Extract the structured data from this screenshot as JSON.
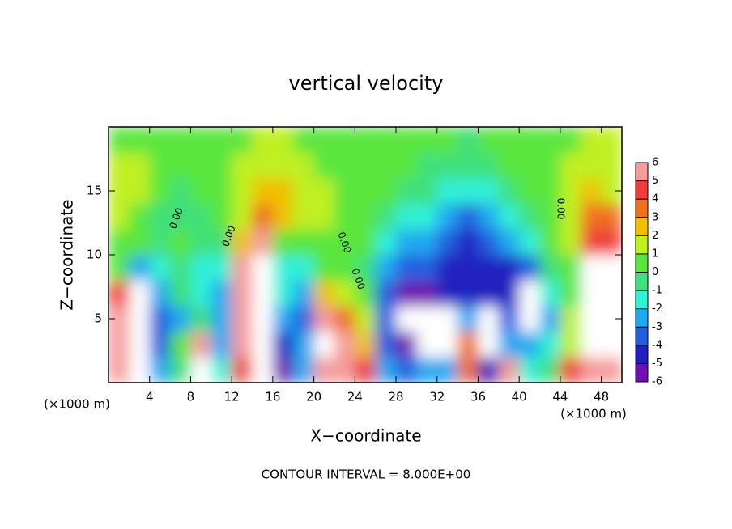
{
  "chart_data": {
    "type": "heatmap",
    "title": "vertical velocity",
    "x_label": "X−coordinate",
    "y_label": "Z−coordinate",
    "x_unit": "(×1000 m)",
    "footer": "CONTOUR INTERVAL = 8.000E+00",
    "contour_label": "0.00",
    "x": [
      1,
      3,
      5,
      7,
      9,
      11,
      13,
      15,
      17,
      19,
      21,
      23,
      25,
      27,
      29,
      31,
      33,
      35,
      37,
      39,
      41,
      43,
      45,
      47,
      49
    ],
    "y": [
      1,
      3,
      5,
      7,
      9,
      11,
      13,
      15,
      17,
      19
    ],
    "z": [
      [
        5,
        -8,
        -3,
        -1,
        8,
        -2,
        4,
        8,
        -6,
        -3,
        6,
        5,
        4,
        -3,
        -4,
        -3,
        -3,
        3,
        -5,
        5,
        -2,
        -1,
        4,
        6,
        5
      ],
      [
        5,
        -8,
        -4,
        0,
        5,
        -3,
        5,
        8,
        -5,
        -3,
        8,
        5,
        2,
        -4,
        -6,
        -8,
        -8,
        3,
        -8,
        -3,
        -3,
        -2,
        1,
        8,
        8
      ],
      [
        5,
        -8,
        -4,
        -3,
        -1,
        -3,
        5,
        8,
        -3,
        -4,
        5,
        3,
        1,
        -4,
        -8,
        -8,
        -8,
        -3,
        -8,
        -4,
        -8,
        -3,
        1,
        8,
        8
      ],
      [
        4,
        -8,
        -3,
        -1,
        -2,
        -3,
        5,
        8,
        -2,
        -3,
        2,
        1,
        0,
        -4,
        -6,
        -6,
        -5,
        -5,
        -5,
        -5,
        -8,
        -2,
        0,
        8,
        8
      ],
      [
        0,
        -3,
        -2,
        -1,
        -2,
        -2,
        5,
        8,
        -2,
        -2,
        0,
        0,
        -1,
        -3,
        -4,
        -4,
        -5,
        -5,
        -5,
        -5,
        -4,
        -1,
        0,
        8,
        7
      ],
      [
        0,
        0,
        -1,
        0,
        -1,
        -1,
        2,
        5,
        0,
        0,
        0,
        0,
        0,
        -2,
        -3,
        -3,
        -4,
        -5,
        -4,
        -3,
        -2,
        0,
        1,
        4,
        4
      ],
      [
        1,
        0,
        -1,
        -1,
        -1,
        0,
        1,
        3,
        2,
        1,
        1,
        0,
        0,
        -1,
        -2,
        -2,
        -3,
        -4,
        -3,
        -2,
        -1,
        0,
        1,
        3,
        3
      ],
      [
        1,
        1,
        0,
        -1,
        0,
        0,
        1,
        2,
        2,
        1,
        1,
        0,
        0,
        0,
        -1,
        -1,
        -2,
        -2,
        -2,
        -1,
        0,
        0,
        1,
        2,
        1
      ],
      [
        1,
        1,
        0,
        0,
        0,
        0,
        1,
        1,
        1,
        1,
        0,
        0,
        0,
        0,
        0,
        -1,
        -1,
        -1,
        -1,
        0,
        0,
        0,
        1,
        1,
        1
      ],
      [
        0,
        0,
        0,
        0,
        0,
        0,
        0,
        1,
        1,
        0,
        0,
        0,
        0,
        0,
        0,
        0,
        0,
        -1,
        0,
        0,
        0,
        0,
        0,
        1,
        1
      ]
    ],
    "xlim": [
      0,
      50
    ],
    "ylim": [
      0,
      20
    ],
    "xticks": [
      4,
      8,
      12,
      16,
      20,
      24,
      28,
      32,
      36,
      40,
      44,
      48
    ],
    "yticks": [
      5,
      10,
      15
    ],
    "colorbar": {
      "ticks": [
        6,
        5,
        4,
        3,
        2,
        1,
        0,
        -1,
        -2,
        -3,
        -4,
        -5,
        -6
      ],
      "colors": [
        "#f59b9b",
        "#f03c3c",
        "#f07020",
        "#f0c000",
        "#c0f020",
        "#5ae63c",
        "#40e07a",
        "#30f0d8",
        "#20a8f0",
        "#2060e0",
        "#2020c0",
        "#7010b0"
      ]
    },
    "out_of_range_color": "#ffffff"
  }
}
